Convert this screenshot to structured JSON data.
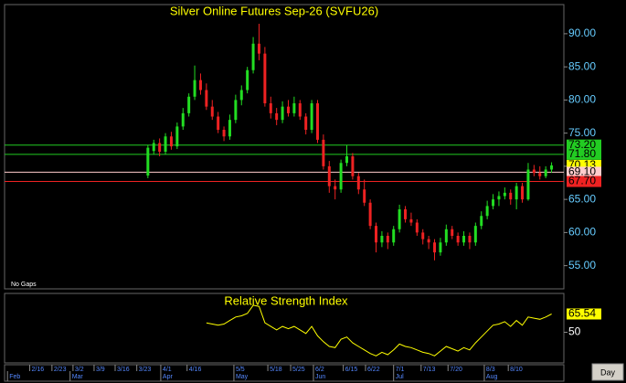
{
  "chart_data": [
    {
      "type": "candlestick",
      "title": "Silver Online Futures Sep-26 (SVFU26)",
      "annotation": "No Gaps",
      "xlim": [
        -24.5,
        71.1
      ],
      "xticks": [
        {
          "value": -20.2,
          "label": "2/16"
        },
        {
          "value": -16.4,
          "label": "2/23"
        },
        {
          "value": -12.8,
          "label": "3/2"
        },
        {
          "value": -9.2,
          "label": "3/9"
        },
        {
          "value": -5.6,
          "label": "3/16"
        },
        {
          "value": -1.9,
          "label": "3/23"
        },
        {
          "value": 2.2,
          "label": "4/1"
        },
        {
          "value": 6.7,
          "label": "4/16"
        },
        {
          "value": 14.7,
          "label": "5/5"
        },
        {
          "value": 20.5,
          "label": "5/18"
        },
        {
          "value": 24.4,
          "label": "5/25"
        },
        {
          "value": 28.3,
          "label": "6/2"
        },
        {
          "value": 33.4,
          "label": "6/15"
        },
        {
          "value": 37.2,
          "label": "6/22"
        },
        {
          "value": 42,
          "label": "7/1"
        },
        {
          "value": 46.7,
          "label": "7/13"
        },
        {
          "value": 51.3,
          "label": "7/20"
        },
        {
          "value": 57.5,
          "label": "8/3"
        },
        {
          "value": 61.6,
          "label": "8/10"
        }
      ],
      "month_ticks": [
        {
          "value": -24,
          "label": "Feb"
        },
        {
          "value": -13.3,
          "label": "Mar"
        },
        {
          "value": 2.2,
          "label": "Apr"
        },
        {
          "value": 14.7,
          "label": "May"
        },
        {
          "value": 28.3,
          "label": "Jun"
        },
        {
          "value": 42,
          "label": "Jul"
        },
        {
          "value": 57.5,
          "label": "Aug"
        }
      ],
      "ylim": [
        51.5,
        94.4
      ],
      "yticks": [
        {
          "value": 55,
          "label": "55.00"
        },
        {
          "value": 60,
          "label": "60.00"
        },
        {
          "value": 65,
          "label": "65.00"
        },
        {
          "value": 70,
          "label": "70.00"
        },
        {
          "value": 75,
          "label": "75.00"
        },
        {
          "value": 80,
          "label": "80.00"
        },
        {
          "value": 85,
          "label": "85.00"
        },
        {
          "value": 90,
          "label": "90.00"
        }
      ],
      "up_color": "#22dd22",
      "down_color": "#ee2222",
      "candles": [
        [
          68.6,
          73.2,
          68.2,
          72.8
        ],
        [
          72.3,
          74.0,
          71.8,
          73.5
        ],
        [
          73.5,
          74.2,
          71.5,
          72.2
        ],
        [
          72.2,
          75.0,
          71.8,
          74.5
        ],
        [
          74.5,
          75.2,
          72.5,
          73.0
        ],
        [
          73.0,
          76.6,
          72.6,
          76.0
        ],
        [
          76.0,
          78.8,
          75.5,
          78.0
        ],
        [
          78.0,
          81.0,
          77.5,
          80.5
        ],
        [
          80.5,
          85.2,
          80.0,
          83.0
        ],
        [
          83.0,
          84.0,
          80.8,
          81.5
        ],
        [
          81.5,
          82.5,
          78.5,
          79.0
        ],
        [
          79.0,
          80.0,
          77.0,
          77.5
        ],
        [
          77.5,
          78.2,
          75.0,
          75.5
        ],
        [
          75.5,
          76.0,
          73.8,
          74.5
        ],
        [
          74.5,
          77.8,
          74.0,
          77.0
        ],
        [
          77.0,
          80.8,
          76.5,
          80.0
        ],
        [
          80.0,
          82.2,
          79.2,
          81.5
        ],
        [
          81.5,
          85.0,
          81.0,
          84.5
        ],
        [
          84.5,
          89.5,
          84.0,
          88.5
        ],
        [
          88.5,
          91.5,
          86.0,
          87.0
        ],
        [
          87.0,
          88.0,
          79.0,
          79.5
        ],
        [
          79.5,
          80.5,
          77.2,
          78.0
        ],
        [
          78.0,
          78.8,
          76.2,
          77.0
        ],
        [
          77.0,
          79.8,
          76.5,
          79.0
        ],
        [
          79.0,
          80.0,
          77.5,
          78.0
        ],
        [
          78.0,
          80.5,
          77.5,
          79.5
        ],
        [
          79.5,
          80.0,
          77.0,
          77.5
        ],
        [
          77.5,
          78.0,
          74.8,
          75.5
        ],
        [
          75.5,
          80.0,
          75.0,
          79.5
        ],
        [
          79.5,
          80.0,
          73.5,
          74.0
        ],
        [
          74.0,
          74.8,
          69.5,
          70.0
        ],
        [
          70.0,
          70.8,
          66.0,
          67.0
        ],
        [
          67.0,
          68.0,
          65.0,
          66.5
        ],
        [
          66.5,
          71.0,
          66.0,
          70.5
        ],
        [
          70.5,
          73.2,
          70.0,
          71.5
        ],
        [
          71.5,
          72.0,
          68.0,
          68.5
        ],
        [
          68.5,
          69.0,
          65.8,
          66.5
        ],
        [
          66.5,
          68.0,
          64.0,
          64.5
        ],
        [
          64.5,
          65.0,
          60.5,
          61.0
        ],
        [
          61.0,
          61.5,
          57.0,
          58.5
        ],
        [
          58.5,
          60.2,
          57.8,
          59.5
        ],
        [
          59.5,
          60.0,
          57.5,
          58.5
        ],
        [
          58.5,
          61.0,
          58.0,
          60.5
        ],
        [
          60.5,
          64.2,
          60.0,
          63.5
        ],
        [
          63.5,
          64.0,
          61.5,
          62.0
        ],
        [
          62.0,
          63.0,
          61.0,
          61.5
        ],
        [
          61.5,
          62.0,
          59.5,
          60.0
        ],
        [
          60.0,
          60.5,
          58.2,
          59.0
        ],
        [
          59.0,
          59.5,
          57.5,
          58.5
        ],
        [
          58.5,
          59.0,
          55.8,
          57.0
        ],
        [
          57.0,
          59.2,
          56.5,
          58.5
        ],
        [
          58.5,
          61.2,
          58.0,
          60.5
        ],
        [
          60.5,
          61.0,
          59.0,
          59.5
        ],
        [
          59.5,
          60.0,
          58.0,
          58.5
        ],
        [
          58.5,
          60.2,
          58.0,
          59.5
        ],
        [
          59.5,
          60.0,
          57.5,
          58.5
        ],
        [
          58.5,
          61.5,
          58.0,
          61.0
        ],
        [
          61.0,
          63.2,
          60.5,
          62.5
        ],
        [
          62.5,
          64.8,
          62.0,
          64.0
        ],
        [
          64.0,
          65.8,
          63.5,
          65.0
        ],
        [
          65.0,
          66.2,
          64.0,
          65.5
        ],
        [
          65.5,
          66.8,
          65.0,
          66.0
        ],
        [
          66.0,
          66.5,
          64.2,
          65.0
        ],
        [
          65.0,
          67.5,
          63.5,
          67.0
        ],
        [
          67.0,
          67.5,
          64.5,
          65.0
        ],
        [
          65.0,
          70.5,
          64.8,
          69.5
        ],
        [
          69.5,
          70.2,
          68.5,
          69.0
        ],
        [
          69.0,
          70.0,
          68.0,
          68.5
        ],
        [
          68.5,
          70.0,
          68.2,
          69.5
        ],
        [
          69.5,
          70.6,
          69.0,
          70.13
        ]
      ],
      "levels": [
        {
          "value": 73.2,
          "label": "73.20",
          "color": "#22cc22",
          "text_color": "#000000",
          "line": true
        },
        {
          "value": 71.8,
          "label": "71.80",
          "color": "#22cc22",
          "text_color": "#000000",
          "line": true
        },
        {
          "value": 70.13,
          "label": "70.13",
          "color": "#ffff00",
          "text_color": "#000000",
          "line": false
        },
        {
          "value": 69.1,
          "label": "69.10",
          "color": "#ffcccc",
          "text_color": "#000000",
          "line": true
        },
        {
          "value": 67.7,
          "label": "67.70",
          "color": "#ee2222",
          "text_color": "#000000",
          "line": true
        }
      ]
    },
    {
      "type": "line",
      "title": "Relative Strength Index",
      "color": "#ffff00",
      "ylim": [
        24,
        83
      ],
      "yticks": [
        50
      ],
      "values": [
        null,
        null,
        null,
        null,
        null,
        null,
        null,
        null,
        null,
        null,
        58,
        57,
        56,
        57,
        60,
        63,
        64,
        66,
        73,
        72,
        58,
        55,
        52,
        55,
        53,
        55,
        52,
        49,
        55,
        47,
        42,
        38,
        37,
        44,
        46,
        41,
        38,
        35,
        32,
        30,
        33,
        31,
        35,
        40,
        38,
        37,
        35,
        33,
        32,
        30,
        34,
        38,
        36,
        34,
        37,
        35,
        41,
        46,
        51,
        56,
        57,
        59,
        55,
        60,
        56,
        63,
        62,
        61,
        63,
        65.54
      ],
      "last_value": 65.54
    }
  ],
  "interval_button": "Day"
}
